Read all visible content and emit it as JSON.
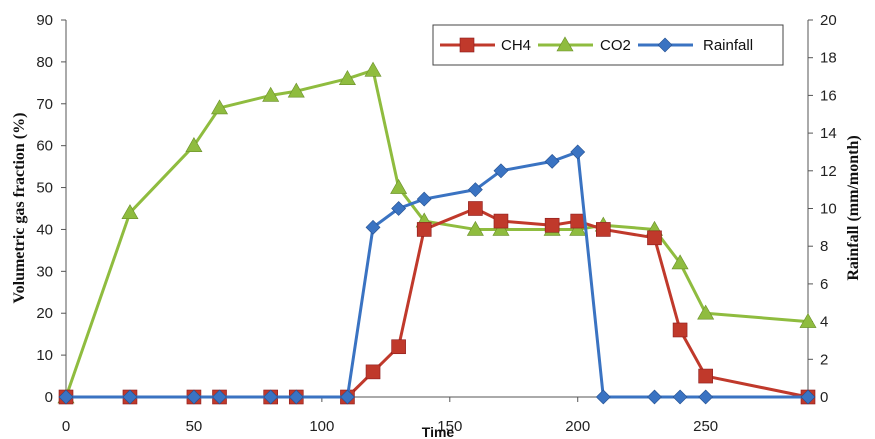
{
  "chart_data": {
    "type": "line",
    "xlabel": "Time",
    "ylabel_left": "Volumetric gas fraction (%)",
    "ylabel_right": "Rainfall (mm/month)",
    "xlim": [
      0,
      290
    ],
    "ylim_left": [
      0,
      90
    ],
    "ylim_right": [
      0,
      20
    ],
    "xticks": [
      "0",
      "50",
      "100",
      "150",
      "200",
      "250"
    ],
    "yticks_left": [
      "0",
      "10",
      "20",
      "30",
      "40",
      "50",
      "60",
      "70",
      "80",
      "90"
    ],
    "yticks_right": [
      "0",
      "2",
      "4",
      "6",
      "8",
      "10",
      "12",
      "14",
      "16",
      "18",
      "20"
    ],
    "grid": false,
    "legend_position": "top-right",
    "series": [
      {
        "name": "CH4",
        "axis": "left",
        "color": "#c0392b",
        "marker": "square",
        "x": [
          0,
          25,
          50,
          60,
          80,
          90,
          110,
          120,
          130,
          140,
          160,
          170,
          190,
          200,
          210,
          230,
          240,
          250,
          290
        ],
        "y": [
          0,
          0,
          0,
          0,
          0,
          0,
          0,
          6,
          12,
          40,
          45,
          42,
          41,
          42,
          40,
          38,
          16,
          5,
          0
        ]
      },
      {
        "name": "CO2",
        "axis": "left",
        "color": "#8fbc3f",
        "marker": "triangle",
        "x": [
          0,
          25,
          50,
          60,
          80,
          90,
          110,
          120,
          130,
          140,
          160,
          170,
          190,
          200,
          210,
          230,
          240,
          250,
          290
        ],
        "y": [
          0,
          44,
          60,
          69,
          72,
          73,
          76,
          78,
          50,
          42,
          40,
          40,
          40,
          40,
          41,
          40,
          32,
          20,
          18
        ]
      },
      {
        "name": "Rainfall",
        "axis": "right",
        "color": "#3a73c2",
        "marker": "diamond",
        "x": [
          0,
          25,
          50,
          60,
          80,
          90,
          110,
          120,
          130,
          140,
          160,
          170,
          190,
          200,
          210,
          230,
          240,
          250,
          290
        ],
        "y": [
          0,
          0,
          0,
          0,
          0,
          0,
          0,
          9,
          10,
          10.5,
          11,
          12,
          12.5,
          13,
          0,
          0,
          0,
          0,
          0
        ]
      }
    ]
  }
}
